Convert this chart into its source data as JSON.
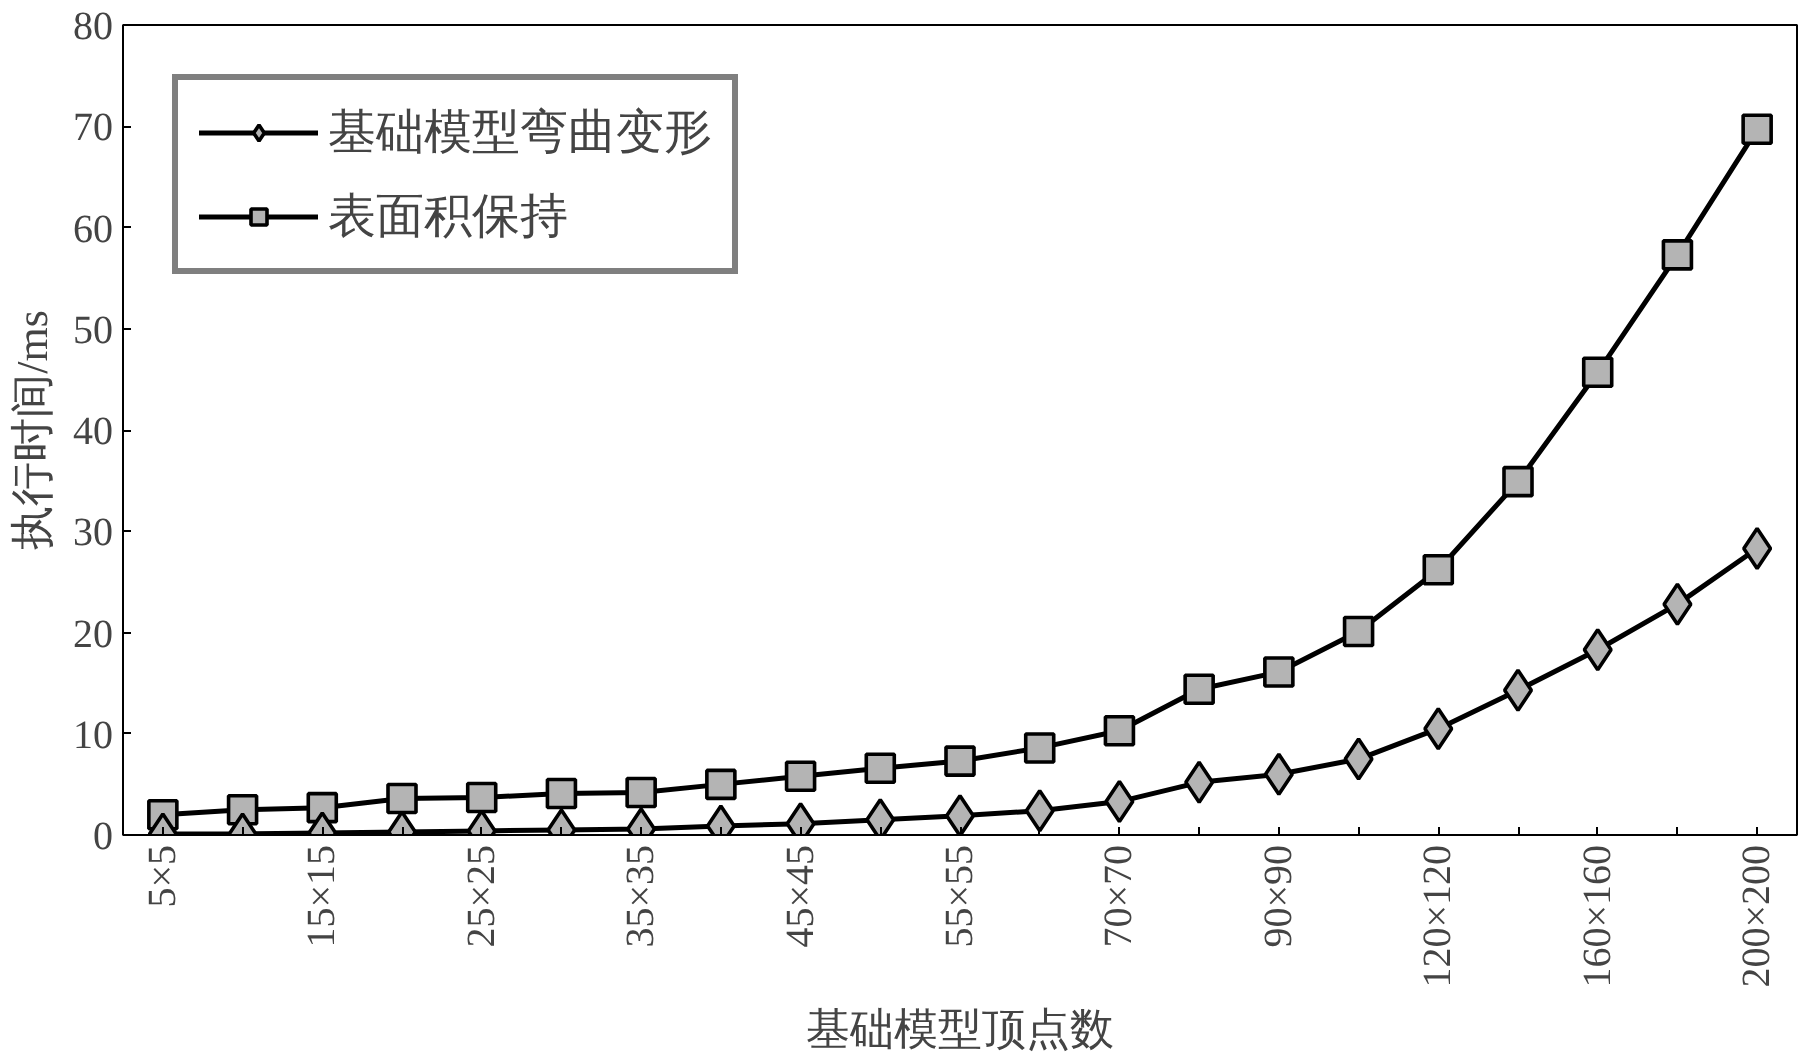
{
  "chart_data": {
    "type": "line",
    "xlabel": "基础模型顶点数",
    "ylabel": "执行时间/ms",
    "categories": [
      "5×5",
      null,
      "15×15",
      null,
      "25×25",
      null,
      "35×35",
      null,
      "45×45",
      null,
      "55×55",
      null,
      "70×70",
      null,
      "90×90",
      null,
      "120×120",
      null,
      "160×160",
      null,
      "200×200"
    ],
    "series": [
      {
        "name": "基础模型弯曲变形",
        "color": "#000000",
        "marker": "diamond",
        "values": [
          0.1,
          0.1,
          0.2,
          0.3,
          0.4,
          0.5,
          0.6,
          0.9,
          1.1,
          1.5,
          1.9,
          2.4,
          3.3,
          5.2,
          6.0,
          7.5,
          10.5,
          14.3,
          18.3,
          22.8,
          28.3
        ]
      },
      {
        "name": "表面积保持",
        "color": "#000000",
        "marker": "square",
        "values": [
          2.0,
          2.5,
          2.7,
          3.6,
          3.7,
          4.1,
          4.2,
          5.0,
          5.8,
          6.6,
          7.3,
          8.6,
          10.3,
          14.4,
          16.1,
          20.1,
          26.2,
          34.9,
          45.7,
          57.3,
          69.7
        ]
      }
    ],
    "ylim": [
      0,
      80
    ],
    "yticks": [
      0,
      10,
      20,
      30,
      40,
      50,
      60,
      70,
      80
    ],
    "grid": false,
    "legend": "top left",
    "line_style": "solid"
  }
}
